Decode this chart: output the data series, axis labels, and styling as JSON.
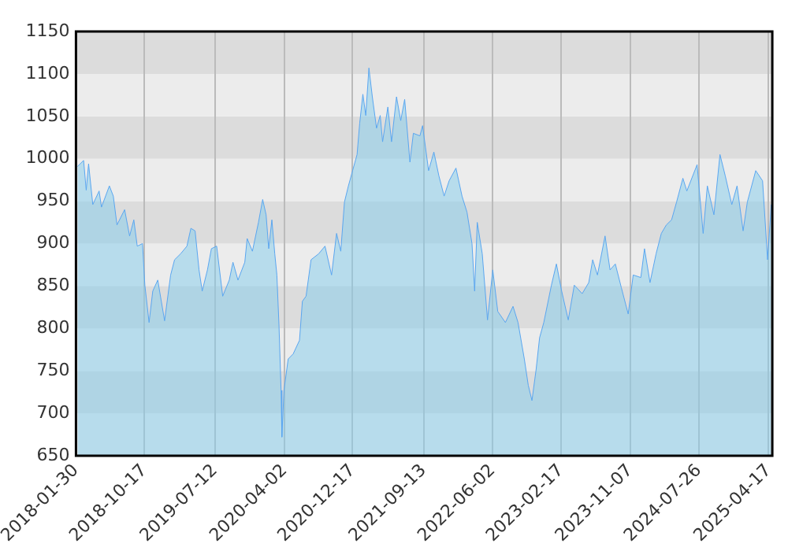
{
  "chart_data": {
    "type": "area",
    "xlim": [
      "2018-01-30",
      "2025-05-01"
    ],
    "ylim": [
      650,
      1150
    ],
    "xticks": [
      "2018-01-30",
      "2018-10-17",
      "2019-07-12",
      "2020-04-02",
      "2020-12-17",
      "2021-09-13",
      "2022-06-02",
      "2023-02-17",
      "2023-11-07",
      "2024-07-26",
      "2025-04-17"
    ],
    "yticks": [
      650,
      700,
      750,
      800,
      850,
      900,
      950,
      1000,
      1050,
      1100,
      1150
    ],
    "grid": "x",
    "legend": false,
    "marker": "none",
    "line_style": "solid",
    "bands": [
      {
        "axis": "y",
        "from": 650,
        "to": 700,
        "color": "#ececec"
      },
      {
        "axis": "y",
        "from": 700,
        "to": 750,
        "color": "#dcdcdc"
      },
      {
        "axis": "y",
        "from": 750,
        "to": 800,
        "color": "#ececec"
      },
      {
        "axis": "y",
        "from": 800,
        "to": 850,
        "color": "#dcdcdc"
      },
      {
        "axis": "y",
        "from": 850,
        "to": 900,
        "color": "#ececec"
      },
      {
        "axis": "y",
        "from": 900,
        "to": 950,
        "color": "#dcdcdc"
      },
      {
        "axis": "y",
        "from": 950,
        "to": 1000,
        "color": "#ececec"
      },
      {
        "axis": "y",
        "from": 1000,
        "to": 1050,
        "color": "#dcdcdc"
      },
      {
        "axis": "y",
        "from": 1050,
        "to": 1100,
        "color": "#ececec"
      },
      {
        "axis": "y",
        "from": 1100,
        "to": 1150,
        "color": "#dcdcdc"
      }
    ],
    "x": [
      "2018-02-05",
      "2018-02-28",
      "2018-03-10",
      "2018-03-19",
      "2018-04-04",
      "2018-04-28",
      "2018-05-07",
      "2018-06-06",
      "2018-06-21",
      "2018-07-05",
      "2018-08-03",
      "2018-08-22",
      "2018-09-07",
      "2018-09-20",
      "2018-10-10",
      "2018-10-19",
      "2018-11-04",
      "2018-11-18",
      "2018-12-07",
      "2019-01-02",
      "2019-01-25",
      "2019-02-09",
      "2019-03-04",
      "2019-03-28",
      "2019-04-12",
      "2019-04-28",
      "2019-05-13",
      "2019-05-25",
      "2019-06-14",
      "2019-06-29",
      "2019-07-19",
      "2019-08-11",
      "2019-09-05",
      "2019-09-19",
      "2019-10-08",
      "2019-11-03",
      "2019-11-12",
      "2019-12-02",
      "2019-12-25",
      "2020-01-10",
      "2020-01-23",
      "2020-02-02",
      "2020-02-14",
      "2020-02-25",
      "2020-03-04",
      "2020-03-12",
      "2020-03-20",
      "2020-03-23",
      "2020-03-31",
      "2020-04-16",
      "2020-05-05",
      "2020-05-29",
      "2020-06-09",
      "2020-06-23",
      "2020-07-12",
      "2020-08-10",
      "2020-09-03",
      "2020-09-28",
      "2020-10-17",
      "2020-11-02",
      "2020-11-16",
      "2020-12-01",
      "2020-12-17",
      "2021-01-03",
      "2021-01-13",
      "2021-01-25",
      "2021-02-05",
      "2021-02-17",
      "2021-03-02",
      "2021-03-18",
      "2021-04-01",
      "2021-04-10",
      "2021-04-30",
      "2021-05-14",
      "2021-06-02",
      "2021-06-18",
      "2021-07-03",
      "2021-07-23",
      "2021-08-05",
      "2021-08-30",
      "2021-09-09",
      "2021-10-02",
      "2021-10-22",
      "2021-11-10",
      "2021-11-30",
      "2021-12-19",
      "2022-01-14",
      "2022-02-06",
      "2022-02-25",
      "2022-03-16",
      "2022-03-26",
      "2022-04-05",
      "2022-04-24",
      "2022-05-14",
      "2022-06-03",
      "2022-06-22",
      "2022-07-21",
      "2022-08-19",
      "2022-09-07",
      "2022-10-01",
      "2022-10-16",
      "2022-10-30",
      "2022-11-15",
      "2022-11-28",
      "2022-12-14",
      "2023-01-12",
      "2023-01-31",
      "2023-02-20",
      "2023-03-17",
      "2023-04-09",
      "2023-05-09",
      "2023-06-03",
      "2023-06-18",
      "2023-07-06",
      "2023-08-04",
      "2023-08-23",
      "2023-09-12",
      "2023-10-05",
      "2023-10-31",
      "2023-11-19",
      "2023-12-18",
      "2024-01-01",
      "2024-01-22",
      "2024-02-14",
      "2024-03-05",
      "2024-03-24",
      "2024-04-13",
      "2024-05-02",
      "2024-05-26",
      "2024-06-10",
      "2024-07-19",
      "2024-08-11",
      "2024-08-27",
      "2024-09-21",
      "2024-10-14",
      "2024-11-03",
      "2024-11-28",
      "2024-12-18",
      "2025-01-10",
      "2025-01-26",
      "2025-02-27",
      "2025-03-25",
      "2025-04-13",
      "2025-04-27"
    ],
    "series": [
      {
        "color": "#5aa6f0",
        "values": [
          991,
          998,
          963,
          994,
          946,
          962,
          943,
          968,
          956,
          922,
          940,
          909,
          928,
          897,
          900,
          851,
          807,
          844,
          857,
          809,
          863,
          881,
          888,
          897,
          918,
          915,
          869,
          844,
          869,
          894,
          897,
          838,
          857,
          878,
          857,
          878,
          906,
          891,
          925,
          952,
          934,
          894,
          928,
          888,
          863,
          804,
          727,
          672,
          727,
          764,
          770,
          786,
          832,
          838,
          881,
          888,
          897,
          863,
          912,
          891,
          949,
          968,
          986,
          1005,
          1042,
          1076,
          1051,
          1107,
          1073,
          1036,
          1051,
          1020,
          1061,
          1020,
          1073,
          1045,
          1070,
          996,
          1030,
          1027,
          1039,
          986,
          1008,
          980,
          956,
          974,
          989,
          956,
          937,
          900,
          844,
          925,
          888,
          810,
          869,
          820,
          807,
          826,
          807,
          764,
          733,
          715,
          752,
          789,
          807,
          851,
          876,
          844,
          810,
          851,
          841,
          854,
          881,
          863,
          909,
          869,
          876,
          848,
          817,
          863,
          860,
          894,
          854,
          888,
          912,
          922,
          928,
          949,
          977,
          962,
          993,
          912,
          968,
          934,
          1005,
          980,
          946,
          968,
          915,
          949,
          986,
          974,
          881,
          946
        ]
      }
    ]
  }
}
